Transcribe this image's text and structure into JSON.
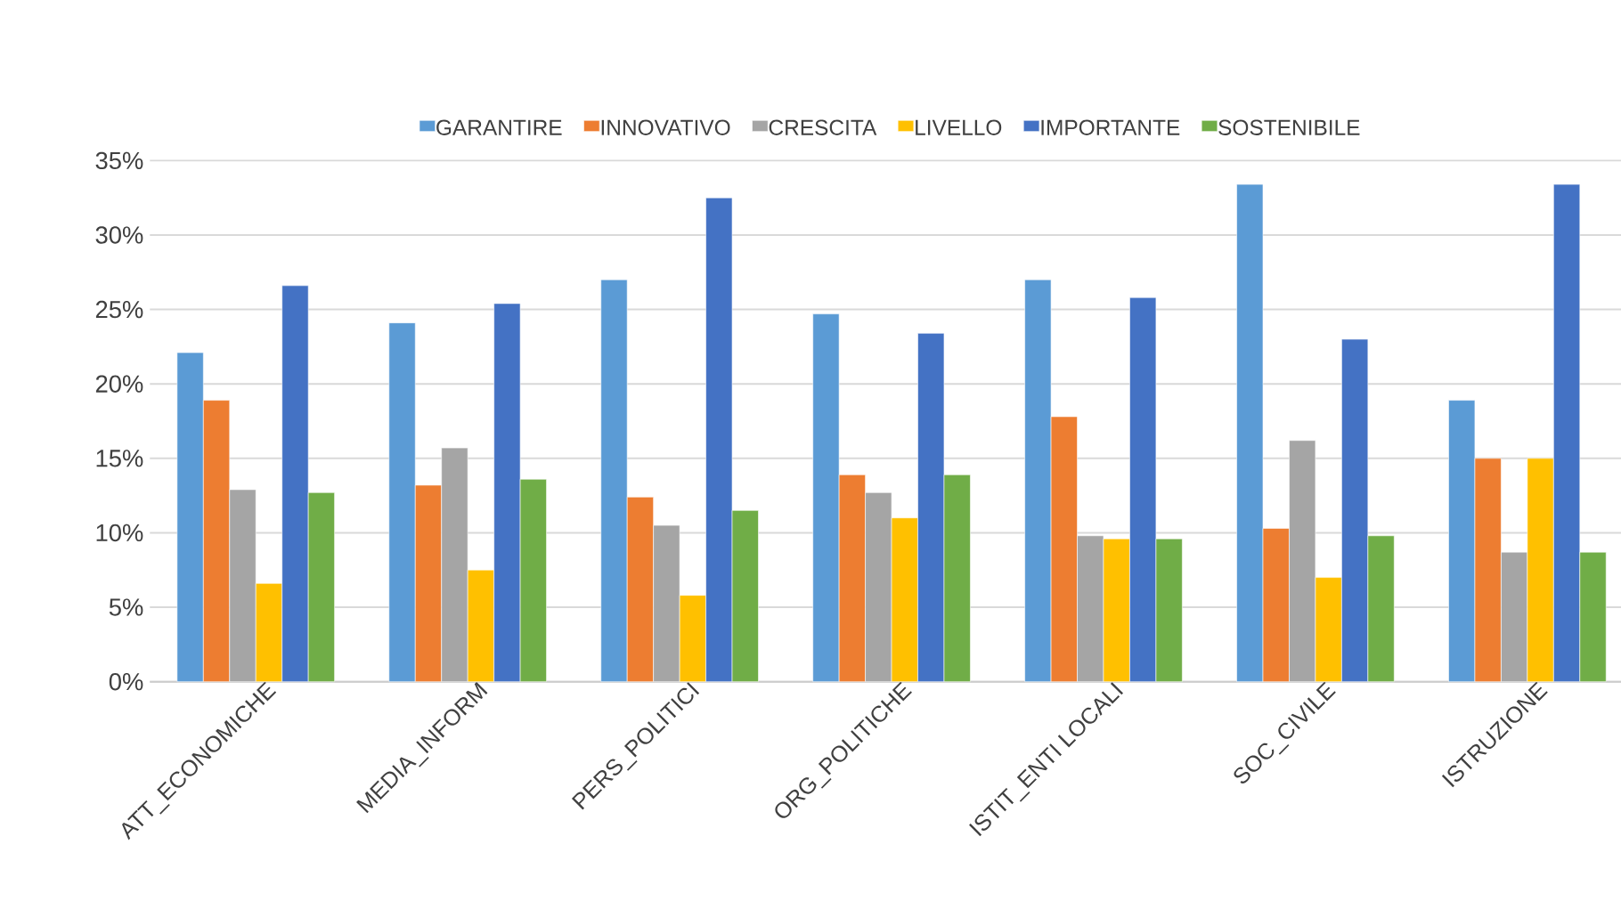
{
  "chart_data": {
    "type": "bar",
    "categories": [
      "ATT_ECONOMICHE",
      "MEDIA_INFORM",
      "PERS_POLITICI",
      "ORG_POLITICHE",
      "ISTIT_ENTI LOCALI",
      "SOC_CIVILE",
      "ISTRUZIONE"
    ],
    "series": [
      {
        "name": "GARANTIRE",
        "color": "#5b9bd5",
        "values": [
          22.1,
          24.1,
          27.0,
          24.7,
          27.0,
          33.4,
          18.9
        ]
      },
      {
        "name": "INNOVATIVO",
        "color": "#ed7d31",
        "values": [
          18.9,
          13.2,
          12.4,
          13.9,
          17.8,
          10.3,
          15.0
        ]
      },
      {
        "name": "CRESCITA",
        "color": "#a5a5a5",
        "values": [
          12.9,
          15.7,
          10.5,
          12.7,
          9.8,
          16.2,
          8.7
        ]
      },
      {
        "name": "LIVELLO",
        "color": "#ffc000",
        "values": [
          6.6,
          7.5,
          5.8,
          11.0,
          9.6,
          7.0,
          15.0
        ]
      },
      {
        "name": "IMPORTANTE",
        "color": "#4472c4",
        "values": [
          26.6,
          25.4,
          32.5,
          23.4,
          25.8,
          23.0,
          33.4
        ]
      },
      {
        "name": "SOSTENIBILE",
        "color": "#70ad47",
        "values": [
          12.7,
          13.6,
          11.5,
          13.9,
          9.6,
          9.8,
          8.7
        ]
      }
    ],
    "ylim": [
      0,
      35
    ],
    "yticks": [
      {
        "value": 0,
        "label": "0%"
      },
      {
        "value": 5,
        "label": "5%"
      },
      {
        "value": 10,
        "label": "10%"
      },
      {
        "value": 15,
        "label": "15%"
      },
      {
        "value": 20,
        "label": "20%"
      },
      {
        "value": 25,
        "label": "25%"
      },
      {
        "value": 30,
        "label": "30%"
      },
      {
        "value": 35,
        "label": "35%"
      }
    ],
    "grid": "y",
    "legend": "top"
  }
}
